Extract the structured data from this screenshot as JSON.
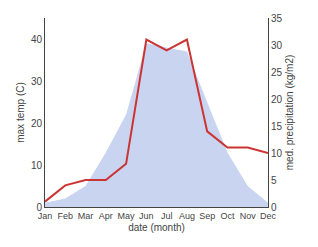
{
  "chart_data": {
    "type": "line",
    "categories": [
      "Jan",
      "Feb",
      "Mar",
      "Apr",
      "May",
      "Jun",
      "Jul",
      "Aug",
      "Sep",
      "Oct",
      "Nov",
      "Dec"
    ],
    "series": [
      {
        "type": "area",
        "color": "#c8d4f0",
        "values": [
          1,
          2,
          5,
          13,
          22,
          39,
          38,
          37,
          25,
          13,
          5,
          1
        ]
      },
      {
        "type": "line",
        "color": "#cc3333",
        "axis": "y2",
        "values": [
          1,
          4,
          5,
          5,
          8,
          31,
          29,
          31,
          14,
          11,
          11,
          10
        ]
      }
    ],
    "xlabel": "date (month)",
    "ylabel": "max temp (C)",
    "y2label": "med. precipitation (kg/m2)",
    "ylim": [
      0,
      45
    ],
    "yticks": [
      0,
      10,
      20,
      30,
      40
    ],
    "y2lim": [
      0,
      35
    ],
    "y2ticks": [
      0,
      5,
      10,
      15,
      20,
      25,
      30,
      35
    ],
    "grid": false
  }
}
